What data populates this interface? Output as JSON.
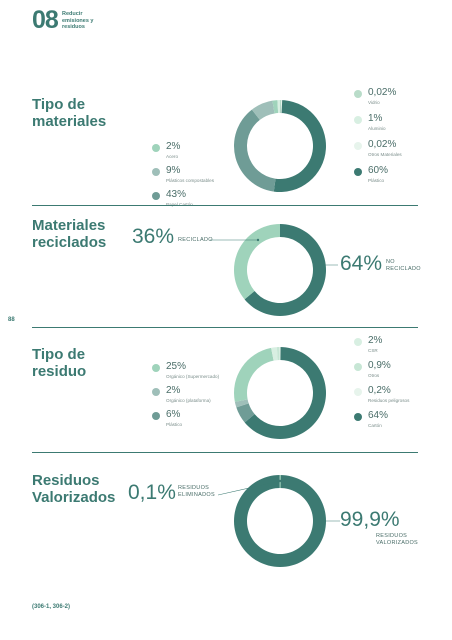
{
  "header": {
    "chapter_number": "08",
    "chapter_title": "Reducir emisiones y residuos"
  },
  "page_number": "88",
  "footer": "(306-1, 306-2)",
  "colors": {
    "dark_teal": "#3c7a72",
    "mid_teal": "#6f9c96",
    "light_green": "#9fd3bb",
    "pale": "#d8efe2",
    "grey_green": "#8fa9a5",
    "very_pale": "#e7f4ec"
  },
  "sections": [
    {
      "title": "Tipo de materiales"
    },
    {
      "title": "Materiales reciclados"
    },
    {
      "title": "Tipo de residuo"
    },
    {
      "title": "Residuos Valorizados"
    }
  ],
  "materiales_legend_left": [
    {
      "pct": "2%",
      "label": "Acero",
      "color": "#9fd3bb"
    },
    {
      "pct": "9%",
      "label": "Plásticos compostables",
      "color": "#9fbfb9"
    },
    {
      "pct": "43%",
      "label": "Papel Cartón",
      "color": "#6f9c96"
    }
  ],
  "materiales_legend_right": [
    {
      "pct": "0,02%",
      "label": "Vidrio",
      "color": "#b9dcc9"
    },
    {
      "pct": "1%",
      "label": "Aluminio",
      "color": "#d8efe2"
    },
    {
      "pct": "0,02%",
      "label": "Otros Materiales",
      "color": "#e7f4ec"
    },
    {
      "pct": "60%",
      "label": "Plástico",
      "color": "#3c7a72"
    }
  ],
  "reciclados_labels": {
    "recycled_pct": "36%",
    "recycled_label": "RECICLADO",
    "not_recycled_pct": "64%",
    "not_recycled_label_1": "NO",
    "not_recycled_label_2": "RECICLADO"
  },
  "residuo_legend_left": [
    {
      "pct": "25%",
      "label": "Orgánico (Supermercado)",
      "color": "#9fd3bb"
    },
    {
      "pct": "2%",
      "label": "Orgánico (plataforma)",
      "color": "#9fbfb9"
    },
    {
      "pct": "6%",
      "label": "Plástico",
      "color": "#6f9c96"
    }
  ],
  "residuo_legend_right": [
    {
      "pct": "2%",
      "label": "CSR",
      "color": "#d8efe2"
    },
    {
      "pct": "0,9%",
      "label": "Otros",
      "color": "#c7e6d5"
    },
    {
      "pct": "0,2%",
      "label": "Residuos peligrosos",
      "color": "#e7f4ec"
    },
    {
      "pct": "64%",
      "label": "Cartón",
      "color": "#3c7a72"
    }
  ],
  "valorizados_labels": {
    "eliminated_pct": "0,1%",
    "eliminated_label_1": "RESIDUOS",
    "eliminated_label_2": "ELIMINADOS",
    "valorized_pct": "99,9%",
    "valorized_label_1": "RESIDUOS",
    "valorized_label_2": "VALORIZADOS"
  },
  "chart_data": [
    {
      "type": "pie",
      "title": "Tipo de materiales",
      "slices": [
        {
          "name": "Plástico",
          "value": 60,
          "color": "#3c7a72"
        },
        {
          "name": "Papel Cartón",
          "value": 43,
          "color": "#6f9c96"
        },
        {
          "name": "Plásticos compostables",
          "value": 9,
          "color": "#9fbfb9"
        },
        {
          "name": "Acero",
          "value": 2,
          "color": "#9fd3bb"
        },
        {
          "name": "Aluminio",
          "value": 1,
          "color": "#d8efe2"
        },
        {
          "name": "Vidrio",
          "value": 0.02,
          "color": "#b9dcc9"
        },
        {
          "name": "Otros Materiales",
          "value": 0.02,
          "color": "#e7f4ec"
        }
      ]
    },
    {
      "type": "pie",
      "title": "Materiales reciclados",
      "slices": [
        {
          "name": "NO RECICLADO",
          "value": 64,
          "color": "#3c7a72"
        },
        {
          "name": "RECICLADO",
          "value": 36,
          "color": "#9fd3bb"
        }
      ]
    },
    {
      "type": "pie",
      "title": "Tipo de residuo",
      "slices": [
        {
          "name": "Cartón",
          "value": 64,
          "color": "#3c7a72"
        },
        {
          "name": "Plástico",
          "value": 6,
          "color": "#6f9c96"
        },
        {
          "name": "Orgánico (plataforma)",
          "value": 2,
          "color": "#9fbfb9"
        },
        {
          "name": "Orgánico (Supermercado)",
          "value": 25,
          "color": "#9fd3bb"
        },
        {
          "name": "CSR",
          "value": 2,
          "color": "#d8efe2"
        },
        {
          "name": "Otros",
          "value": 0.9,
          "color": "#c7e6d5"
        },
        {
          "name": "Residuos peligrosos",
          "value": 0.2,
          "color": "#e7f4ec"
        }
      ]
    },
    {
      "type": "pie",
      "title": "Residuos Valorizados",
      "slices": [
        {
          "name": "RESIDUOS VALORIZADOS",
          "value": 99.9,
          "color": "#3c7a72"
        },
        {
          "name": "RESIDUOS ELIMINADOS",
          "value": 0.1,
          "color": "#9fd3bb"
        }
      ]
    }
  ]
}
